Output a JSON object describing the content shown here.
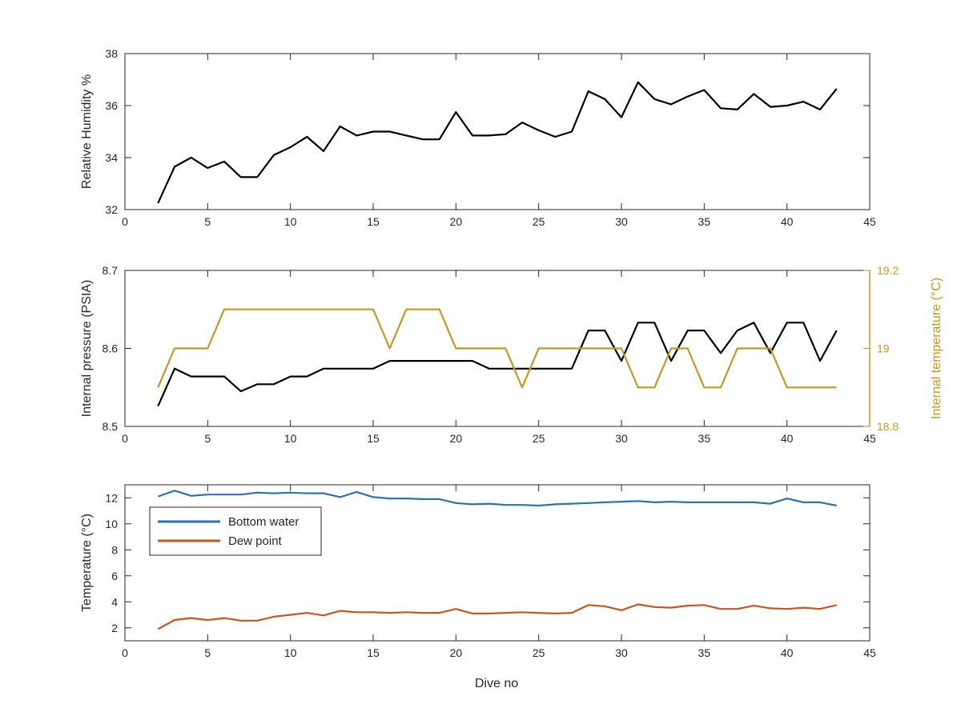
{
  "figure": {
    "xlabel": "Dive no",
    "colors": {
      "axes": "#262626",
      "black": "#000000",
      "gold": "#C8961E",
      "blue": "#2A72B8",
      "orange": "#C8561E"
    }
  },
  "chart_data": [
    {
      "type": "line",
      "xlim": [
        0,
        45
      ],
      "ylim": [
        32,
        38
      ],
      "xticks": [
        "0",
        "5",
        "10",
        "15",
        "20",
        "25",
        "30",
        "35",
        "40",
        "45"
      ],
      "yticks": [
        "32",
        "34",
        "36",
        "38"
      ],
      "ylabel": "Relative Humidity %",
      "series": [
        {
          "color": "#000000",
          "x": [
            2,
            3,
            4,
            5,
            6,
            7,
            8,
            9,
            10,
            11,
            12,
            13,
            14,
            15,
            16,
            17,
            18,
            19,
            20,
            21,
            22,
            23,
            24,
            25,
            26,
            27,
            28,
            29,
            30,
            31,
            32,
            33,
            34,
            35,
            36,
            37,
            38,
            39,
            40,
            41,
            42,
            43
          ],
          "y": [
            32.25,
            33.65,
            34.0,
            33.6,
            33.85,
            33.25,
            33.25,
            34.1,
            34.4,
            34.8,
            34.25,
            35.2,
            34.85,
            35.0,
            35.0,
            34.85,
            34.7,
            34.7,
            35.75,
            34.85,
            34.85,
            34.9,
            35.35,
            35.05,
            34.8,
            35.0,
            36.55,
            36.25,
            35.55,
            36.9,
            36.25,
            36.05,
            36.35,
            36.6,
            35.9,
            35.85,
            36.45,
            35.95,
            36.0,
            36.15,
            35.85,
            36.65
          ]
        }
      ]
    },
    {
      "type": "line",
      "xlim": [
        0,
        45
      ],
      "ylim": [
        8.5,
        8.7
      ],
      "xticks": [
        "0",
        "5",
        "10",
        "15",
        "20",
        "25",
        "30",
        "35",
        "40",
        "45"
      ],
      "yticks": [
        "8.5",
        "8.6",
        "8.7"
      ],
      "ylabel": "Internal pressure (PSIA)",
      "y2lim": [
        18.8,
        19.2
      ],
      "y2ticks": [
        "18.8",
        "19",
        "19.2"
      ],
      "y2label": "Internal temperature (°C)",
      "series": [
        {
          "axis": "left",
          "color": "#000000",
          "x": [
            2,
            3,
            4,
            5,
            6,
            7,
            8,
            9,
            10,
            11,
            12,
            13,
            14,
            15,
            16,
            17,
            18,
            19,
            20,
            21,
            22,
            23,
            24,
            25,
            26,
            27,
            28,
            29,
            30,
            31,
            32,
            33,
            34,
            35,
            36,
            37,
            38,
            39,
            40,
            41,
            42,
            43
          ],
          "y": [
            8.526,
            8.574,
            8.564,
            8.564,
            8.564,
            8.545,
            8.554,
            8.554,
            8.564,
            8.564,
            8.574,
            8.574,
            8.574,
            8.574,
            8.584,
            8.584,
            8.584,
            8.584,
            8.584,
            8.584,
            8.574,
            8.574,
            8.574,
            8.574,
            8.574,
            8.574,
            8.623,
            8.623,
            8.584,
            8.633,
            8.633,
            8.584,
            8.623,
            8.623,
            8.594,
            8.623,
            8.633,
            8.594,
            8.633,
            8.633,
            8.584,
            8.623
          ]
        },
        {
          "axis": "right",
          "color": "#C8961E",
          "x": [
            2,
            3,
            4,
            5,
            6,
            7,
            8,
            9,
            10,
            11,
            12,
            13,
            14,
            15,
            16,
            17,
            18,
            19,
            20,
            21,
            22,
            23,
            24,
            25,
            26,
            27,
            28,
            29,
            30,
            31,
            32,
            33,
            34,
            35,
            36,
            37,
            38,
            39,
            40,
            41,
            42,
            43
          ],
          "y": [
            18.9,
            19.0,
            19.0,
            19.0,
            19.1,
            19.1,
            19.1,
            19.1,
            19.1,
            19.1,
            19.1,
            19.1,
            19.1,
            19.1,
            19.0,
            19.1,
            19.1,
            19.1,
            19.0,
            19.0,
            19.0,
            19.0,
            18.9,
            19.0,
            19.0,
            19.0,
            19.0,
            19.0,
            19.0,
            18.9,
            18.9,
            19.0,
            19.0,
            18.9,
            18.9,
            19.0,
            19.0,
            19.0,
            18.9,
            18.9,
            18.9,
            18.9
          ]
        }
      ]
    },
    {
      "type": "line",
      "xlim": [
        0,
        45
      ],
      "ylim": [
        1,
        13
      ],
      "xticks": [
        "0",
        "5",
        "10",
        "15",
        "20",
        "25",
        "30",
        "35",
        "40",
        "45"
      ],
      "yticks": [
        "2",
        "4",
        "6",
        "8",
        "10",
        "12"
      ],
      "ylabel": "Temperature (°C)",
      "legend": "top-left",
      "series": [
        {
          "name": "Bottom water",
          "color": "#2A72B8",
          "x": [
            2,
            3,
            4,
            5,
            6,
            7,
            8,
            9,
            10,
            11,
            12,
            13,
            14,
            15,
            16,
            17,
            18,
            19,
            20,
            21,
            22,
            23,
            24,
            25,
            26,
            27,
            28,
            29,
            30,
            31,
            32,
            33,
            34,
            35,
            36,
            37,
            38,
            39,
            40,
            41,
            42,
            43
          ],
          "y": [
            12.1,
            12.55,
            12.15,
            12.25,
            12.25,
            12.25,
            12.4,
            12.35,
            12.4,
            12.35,
            12.35,
            12.05,
            12.45,
            12.05,
            11.95,
            11.95,
            11.9,
            11.9,
            11.6,
            11.5,
            11.55,
            11.45,
            11.45,
            11.4,
            11.5,
            11.55,
            11.6,
            11.65,
            11.7,
            11.75,
            11.65,
            11.7,
            11.65,
            11.65,
            11.65,
            11.65,
            11.65,
            11.55,
            11.95,
            11.65,
            11.65,
            11.4
          ]
        },
        {
          "name": "Dew point",
          "color": "#C8561E",
          "x": [
            2,
            3,
            4,
            5,
            6,
            7,
            8,
            9,
            10,
            11,
            12,
            13,
            14,
            15,
            16,
            17,
            18,
            19,
            20,
            21,
            22,
            23,
            24,
            25,
            26,
            27,
            28,
            29,
            30,
            31,
            32,
            33,
            34,
            35,
            36,
            37,
            38,
            39,
            40,
            41,
            42,
            43
          ],
          "y": [
            1.9,
            2.6,
            2.75,
            2.6,
            2.75,
            2.55,
            2.55,
            2.85,
            3.0,
            3.15,
            2.95,
            3.3,
            3.2,
            3.2,
            3.15,
            3.2,
            3.15,
            3.15,
            3.45,
            3.1,
            3.1,
            3.15,
            3.2,
            3.15,
            3.1,
            3.15,
            3.75,
            3.65,
            3.35,
            3.8,
            3.6,
            3.55,
            3.7,
            3.75,
            3.45,
            3.45,
            3.7,
            3.5,
            3.45,
            3.55,
            3.45,
            3.75
          ]
        }
      ]
    }
  ]
}
